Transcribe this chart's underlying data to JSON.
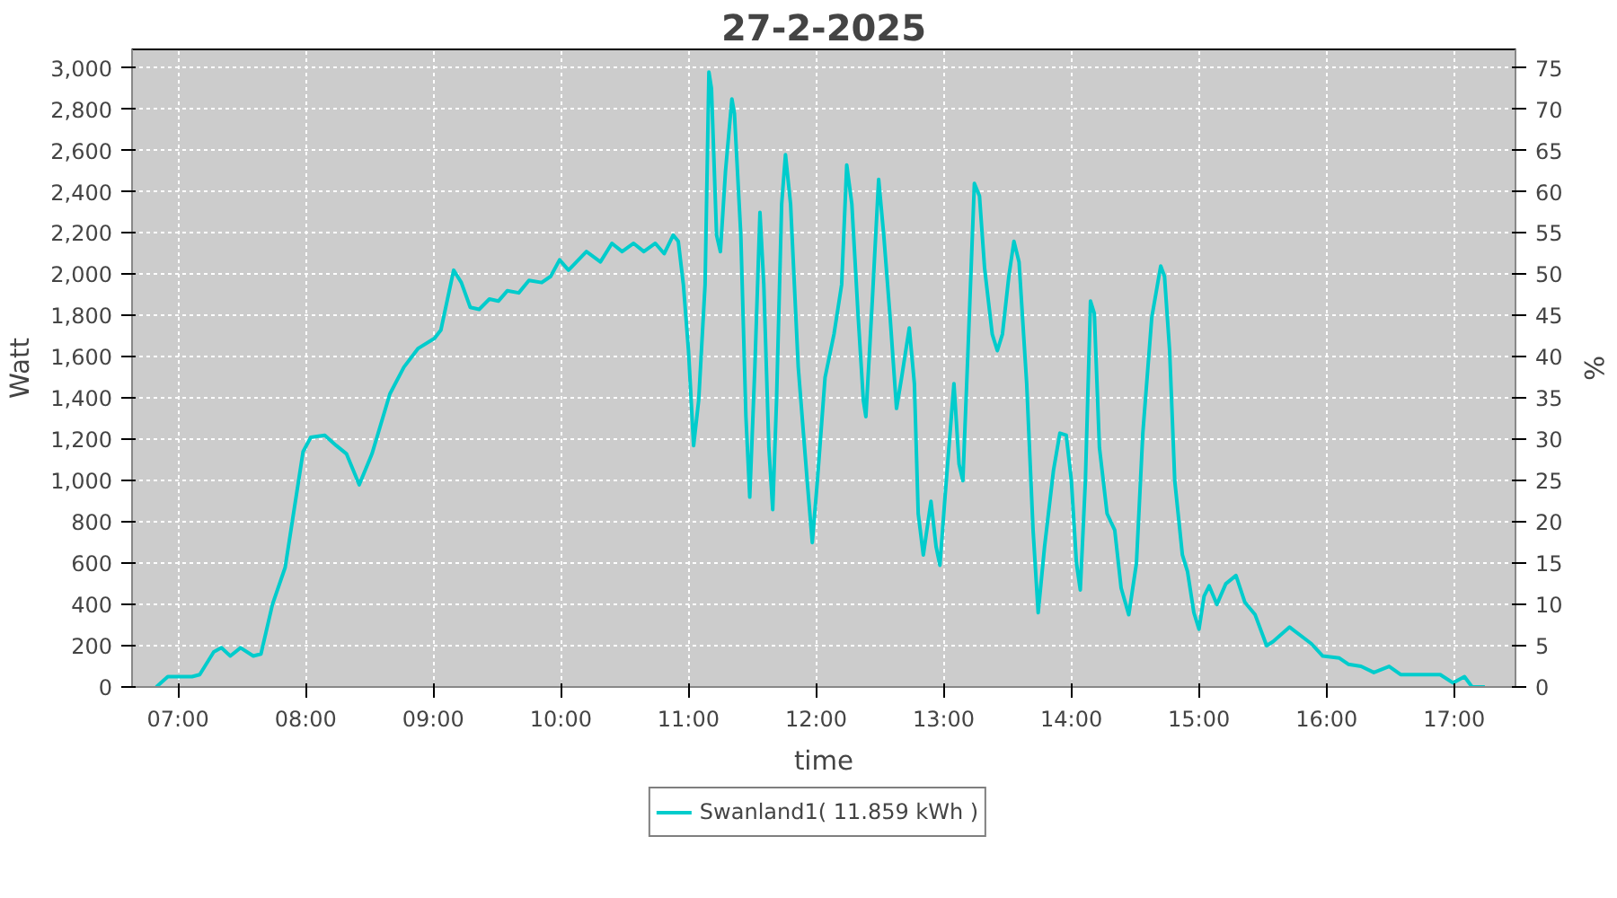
{
  "chart_data": {
    "type": "line",
    "title": "27-2-2025",
    "xlabel": "time",
    "ylabel": "Watt",
    "y2label": "%",
    "xlim": [
      6.64,
      17.48
    ],
    "ylim": [
      0,
      3090
    ],
    "y2lim": [
      0,
      77.25
    ],
    "xticks": [
      {
        "value": 7,
        "label": "07:00"
      },
      {
        "value": 8,
        "label": "08:00"
      },
      {
        "value": 9,
        "label": "09:00"
      },
      {
        "value": 10,
        "label": "10:00"
      },
      {
        "value": 11,
        "label": "11:00"
      },
      {
        "value": 12,
        "label": "12:00"
      },
      {
        "value": 13,
        "label": "13:00"
      },
      {
        "value": 14,
        "label": "14:00"
      },
      {
        "value": 15,
        "label": "15:00"
      },
      {
        "value": 16,
        "label": "16:00"
      },
      {
        "value": 17,
        "label": "17:00"
      }
    ],
    "yticks": [
      0,
      200,
      400,
      600,
      800,
      {
        "value": 1000,
        "label": "1,000"
      },
      {
        "value": 1200,
        "label": "1,200"
      },
      {
        "value": 1400,
        "label": "1,400"
      },
      {
        "value": 1600,
        "label": "1,600"
      },
      {
        "value": 1800,
        "label": "1,800"
      },
      {
        "value": 2000,
        "label": "2,000"
      },
      {
        "value": 2200,
        "label": "2,200"
      },
      {
        "value": 2400,
        "label": "2,400"
      },
      {
        "value": 2600,
        "label": "2,600"
      },
      {
        "value": 2800,
        "label": "2,800"
      },
      {
        "value": 3000,
        "label": "3,000"
      }
    ],
    "y2ticks": [
      0,
      5,
      10,
      15,
      20,
      25,
      30,
      35,
      40,
      45,
      50,
      55,
      60,
      65,
      70,
      75
    ],
    "grid": true,
    "legend": "bottom",
    "marker": "none",
    "line_style": "solid",
    "x": [
      6.83,
      6.92,
      7.11,
      7.17,
      7.28,
      7.34,
      7.41,
      7.49,
      7.59,
      7.65,
      7.74,
      7.84,
      7.91,
      7.98,
      8.04,
      8.15,
      8.24,
      8.32,
      8.42,
      8.52,
      8.66,
      8.77,
      8.88,
      9.01,
      9.06,
      9.16,
      9.22,
      9.29,
      9.36,
      9.44,
      9.51,
      9.58,
      9.67,
      9.75,
      9.85,
      9.92,
      9.99,
      10.06,
      10.2,
      10.31,
      10.4,
      10.48,
      10.57,
      10.65,
      10.74,
      10.81,
      10.88,
      10.92,
      10.96,
      11.0,
      11.04,
      11.08,
      11.13,
      11.16,
      11.18,
      11.22,
      11.25,
      11.29,
      11.34,
      11.36,
      11.41,
      11.45,
      11.48,
      11.52,
      11.56,
      11.59,
      11.63,
      11.66,
      11.69,
      11.73,
      11.76,
      11.8,
      11.86,
      11.93,
      11.97,
      12.01,
      12.07,
      12.14,
      12.2,
      12.24,
      12.28,
      12.33,
      12.37,
      12.39,
      12.44,
      12.49,
      12.53,
      12.58,
      12.63,
      12.67,
      12.73,
      12.77,
      12.8,
      12.84,
      12.9,
      12.94,
      12.97,
      13.01,
      13.08,
      13.12,
      13.15,
      13.19,
      13.24,
      13.28,
      13.32,
      13.38,
      13.42,
      13.46,
      13.51,
      13.55,
      13.59,
      13.65,
      13.7,
      13.74,
      13.79,
      13.86,
      13.91,
      13.96,
      14.0,
      14.04,
      14.07,
      14.11,
      14.15,
      14.18,
      14.22,
      14.28,
      14.34,
      14.39,
      14.45,
      14.51,
      14.56,
      14.63,
      14.7,
      14.73,
      14.77,
      14.81,
      14.87,
      14.91,
      14.96,
      15.0,
      15.04,
      15.08,
      15.14,
      15.21,
      15.29,
      15.36,
      15.44,
      15.53,
      15.58,
      15.71,
      15.88,
      15.97,
      16.1,
      16.17,
      16.27,
      16.37,
      16.49,
      16.58,
      16.89,
      16.99,
      17.08,
      17.14,
      17.24
    ],
    "series": [
      {
        "name": "Swanland1( 11.859 kWh )",
        "color": "#00cccc",
        "values": [
          0,
          50,
          50,
          60,
          170,
          190,
          150,
          190,
          150,
          160,
          400,
          580,
          860,
          1140,
          1210,
          1220,
          1170,
          1130,
          980,
          1130,
          1420,
          1550,
          1640,
          1690,
          1730,
          2020,
          1960,
          1840,
          1830,
          1880,
          1870,
          1920,
          1910,
          1970,
          1960,
          1990,
          2070,
          2020,
          2110,
          2060,
          2150,
          2110,
          2150,
          2110,
          2150,
          2100,
          2190,
          2160,
          1950,
          1630,
          1170,
          1390,
          1950,
          2980,
          2900,
          2190,
          2110,
          2500,
          2850,
          2780,
          2190,
          1310,
          920,
          1550,
          2300,
          1950,
          1160,
          860,
          1390,
          2340,
          2580,
          2340,
          1550,
          1000,
          700,
          1000,
          1500,
          1710,
          1950,
          2530,
          2340,
          1790,
          1390,
          1310,
          1870,
          2460,
          2190,
          1790,
          1350,
          1500,
          1740,
          1470,
          840,
          640,
          900,
          680,
          590,
          920,
          1470,
          1080,
          1000,
          1630,
          2440,
          2380,
          2030,
          1710,
          1630,
          1710,
          1990,
          2160,
          2060,
          1470,
          760,
          360,
          680,
          1050,
          1230,
          1220,
          1000,
          600,
          470,
          1000,
          1870,
          1810,
          1160,
          840,
          760,
          480,
          350,
          600,
          1230,
          1790,
          2040,
          1990,
          1630,
          1000,
          640,
          560,
          360,
          280,
          440,
          490,
          400,
          500,
          540,
          410,
          350,
          200,
          220,
          290,
          210,
          150,
          140,
          110,
          100,
          70,
          100,
          60,
          60,
          20,
          50,
          0,
          0
        ]
      }
    ]
  }
}
